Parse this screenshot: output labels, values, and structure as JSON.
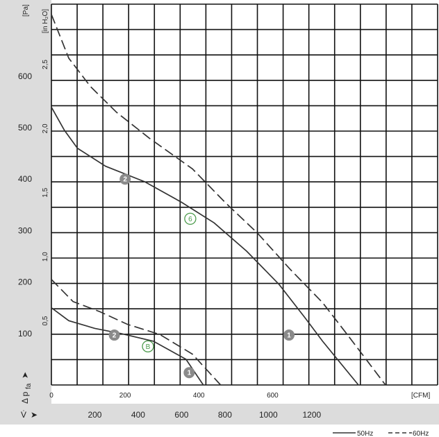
{
  "chart_data": {
    "type": "line",
    "y_unit_left": "[Pa]",
    "y_unit_secondary": "[in H₂O]",
    "x_unit_secondary": "[CFM]",
    "y_axis_symbol": "Δ p",
    "y_axis_subscript": "fa",
    "x_axis_symbol": "V̇",
    "x_axis_arrow": "➤",
    "y_axis_arrow": "➤",
    "pa_ticks": [
      "100",
      "200",
      "300",
      "400",
      "500",
      "600"
    ],
    "pa_tick_values": [
      100,
      200,
      300,
      400,
      500,
      600
    ],
    "inh2o_ticks": [
      "0,5",
      "1,0",
      "1,5",
      "2,0",
      "2,5"
    ],
    "inh2o_tick_values": [
      0.5,
      1.0,
      1.5,
      2.0,
      2.5
    ],
    "cfm_ticks": [
      "0",
      "200",
      "400",
      "600"
    ],
    "cfm_tick_values": [
      0,
      200,
      400,
      600
    ],
    "m3h_ticks": [
      "200",
      "400",
      "600",
      "800",
      "1000",
      "1200"
    ],
    "m3h_tick_values": [
      200,
      400,
      600,
      800,
      1000,
      1200
    ],
    "legend": [
      {
        "label": "50Hz",
        "style": "solid"
      },
      {
        "label": "60Hz",
        "style": "dashed"
      }
    ],
    "xlim": [
      0,
      1780
    ],
    "ylim": [
      0,
      740
    ],
    "series": [
      {
        "name": "50Hz",
        "style": "solid",
        "x": [
          0,
          60,
          120,
          250,
          430,
          600,
          750,
          900,
          1050,
          1170,
          1250,
          1415
        ],
        "y": [
          540,
          495,
          460,
          425,
          395,
          355,
          315,
          260,
          195,
          130,
          85,
          0
        ]
      },
      {
        "name": "60Hz",
        "style": "dashed",
        "x": [
          0,
          80,
          180,
          300,
          450,
          650,
          800,
          950,
          1100,
          1250,
          1360,
          1540
        ],
        "y": [
          720,
          635,
          580,
          530,
          480,
          420,
          355,
          295,
          225,
          160,
          100,
          0
        ]
      },
      {
        "name": "50Hz",
        "style": "solid",
        "x": [
          0,
          80,
          200,
          320,
          470,
          620,
          700
        ],
        "y": [
          150,
          125,
          110,
          100,
          85,
          50,
          0
        ]
      },
      {
        "name": "60Hz",
        "style": "dashed",
        "x": [
          0,
          100,
          220,
          350,
          500,
          650,
          780
        ],
        "y": [
          205,
          162,
          143,
          118,
          98,
          60,
          0
        ]
      }
    ],
    "markers": [
      {
        "label": "2",
        "style": "gray",
        "x": 340,
        "y": 400
      },
      {
        "label": "6",
        "style": "green",
        "x": 640,
        "y": 323
      },
      {
        "label": "1",
        "style": "gray",
        "x": 1095,
        "y": 97
      },
      {
        "label": "2",
        "style": "gray",
        "x": 290,
        "y": 97
      },
      {
        "label": "B",
        "style": "green",
        "x": 445,
        "y": 75
      },
      {
        "label": "1",
        "style": "gray",
        "x": 635,
        "y": 24
      }
    ]
  }
}
